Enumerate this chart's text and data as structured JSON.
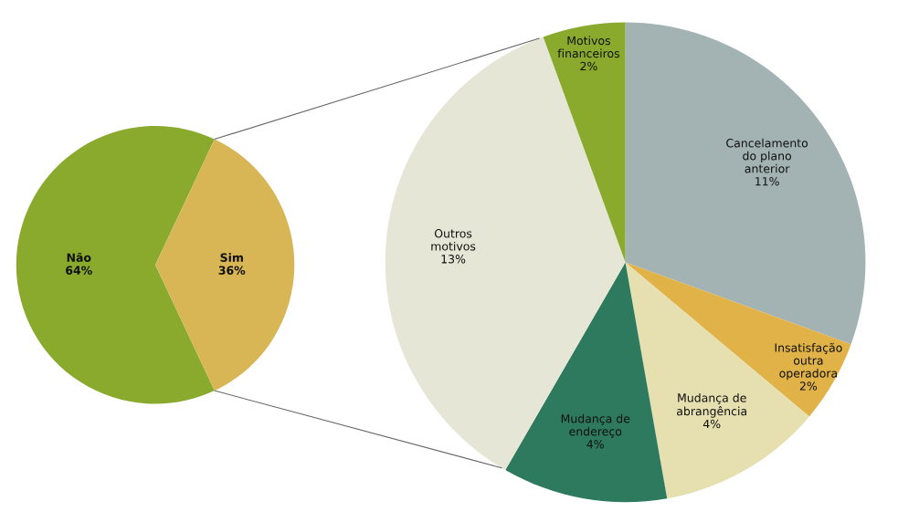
{
  "chart_data": [
    {
      "type": "pie",
      "categories": [
        "Não",
        "Sim"
      ],
      "values": [
        64,
        36
      ],
      "colors": [
        "#8aaa2e",
        "#d8b656"
      ],
      "value_labels": [
        "64%",
        "36%"
      ]
    },
    {
      "type": "pie",
      "categories": [
        "Cancelamento\ndo plano\nanterior",
        "Insatisfação\noutra\noperadora",
        "Mudança de\nabrangência",
        "Mudança de\nendereço",
        "Outros\nmotivos",
        "Motivos\nfinanceiros"
      ],
      "values": [
        11,
        2,
        4,
        4,
        13,
        2
      ],
      "colors": [
        "#a3b3b3",
        "#e0b248",
        "#e6e0b0",
        "#2e7a5e",
        "#e6e6d6",
        "#8aaa2e"
      ],
      "value_labels": [
        "11%",
        "2%",
        "4%",
        "4%",
        "13%",
        "2%"
      ]
    }
  ]
}
